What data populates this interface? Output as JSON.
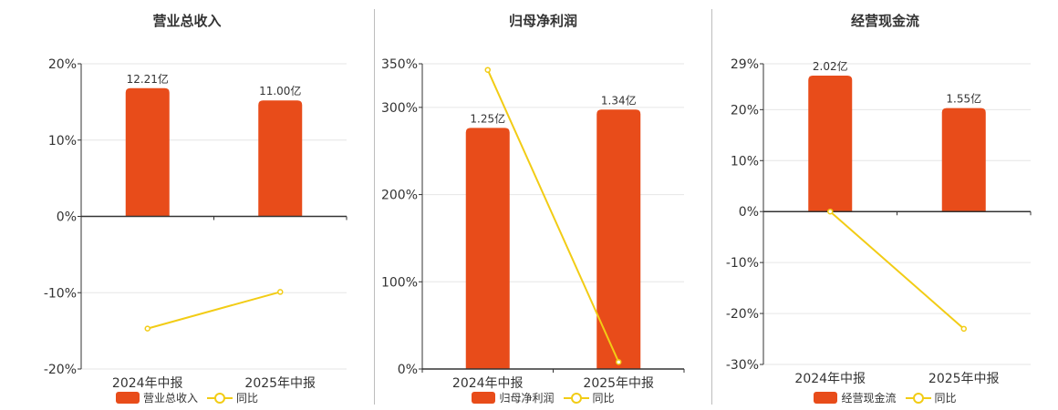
{
  "colors": {
    "bar": "#e84c1a",
    "line": "#f2cc15",
    "axis": "#333333",
    "grid": "#e6e6e6",
    "text": "#333333"
  },
  "chart_data": [
    {
      "type": "bar",
      "title": "营业总收入",
      "categories": [
        "2024年中报",
        "2025年中报"
      ],
      "series": [
        {
          "name": "营业总收入",
          "type": "bar",
          "values": [
            12.21,
            11.0
          ],
          "labels": [
            "12.21亿",
            "11.00亿"
          ]
        },
        {
          "name": "同比",
          "type": "line",
          "values": [
            -14.7,
            -9.9
          ]
        }
      ],
      "ylim": [
        -20,
        20
      ],
      "yticks": [
        20,
        10,
        0,
        -10,
        -20
      ],
      "ytick_labels": [
        "20%",
        "10%",
        "0%",
        "-10%",
        "-20%"
      ],
      "bar_ratio": [
        0.84,
        0.76
      ],
      "grid": true,
      "legend": "bottom"
    },
    {
      "type": "bar",
      "title": "归母净利润",
      "categories": [
        "2024年中报",
        "2025年中报"
      ],
      "series": [
        {
          "name": "归母净利润",
          "type": "bar",
          "values": [
            1.25,
            1.34
          ],
          "labels": [
            "1.25亿",
            "1.34亿"
          ]
        },
        {
          "name": "同比",
          "type": "line",
          "values": [
            343,
            8
          ]
        }
      ],
      "ylim": [
        0,
        350
      ],
      "yticks": [
        350,
        300,
        200,
        100,
        0
      ],
      "ytick_labels": [
        "350%",
        "300%",
        "200%",
        "100%",
        "0%"
      ],
      "bar_ratio": [
        0.79,
        0.85
      ],
      "grid": true,
      "legend": "bottom"
    },
    {
      "type": "bar",
      "title": "经营现金流",
      "categories": [
        "2024年中报",
        "2025年中报"
      ],
      "series": [
        {
          "name": "经营现金流",
          "type": "bar",
          "values": [
            2.02,
            1.55
          ],
          "labels": [
            "2.02亿",
            "1.55亿"
          ]
        },
        {
          "name": "同比",
          "type": "line",
          "values": [
            0,
            -23
          ]
        }
      ],
      "ylim": [
        -30,
        29
      ],
      "yticks": [
        29,
        20,
        10,
        0,
        -10,
        -20,
        -30
      ],
      "ytick_labels": [
        "29%",
        "20%",
        "10%",
        "0%",
        "-10%",
        "-20%",
        "-30%"
      ],
      "bar_ratio": [
        0.92,
        0.7
      ],
      "grid": true,
      "legend": "bottom"
    }
  ]
}
